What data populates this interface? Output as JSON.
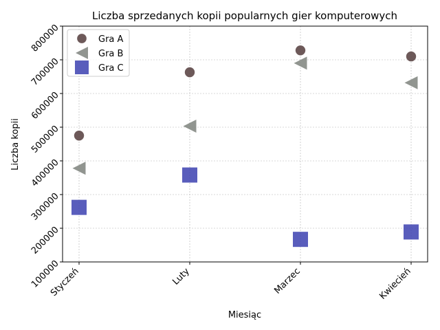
{
  "chart_data": {
    "type": "scatter",
    "title": "Liczba sprzedanych kopii popularnych gier komputerowych",
    "xlabel": "Miesiąc",
    "ylabel": "Liczba kopii",
    "categories": [
      "Styczeń",
      "Luty",
      "Marzec",
      "Kwiecień"
    ],
    "ylim": [
      100000,
      800000
    ],
    "yticks": [
      100000,
      200000,
      300000,
      400000,
      500000,
      600000,
      700000,
      800000
    ],
    "grid": true,
    "legend_position": "top-left",
    "series": [
      {
        "name": "Gra A",
        "marker": "circle",
        "color": "#5d4747",
        "values": [
          475000,
          663000,
          728000,
          710000
        ]
      },
      {
        "name": "Gra B",
        "marker": "triangle-left",
        "color": "#858a84",
        "values": [
          378000,
          503000,
          690000,
          632000
        ]
      },
      {
        "name": "Gra C",
        "marker": "square",
        "color": "#3c41b0",
        "values": [
          262000,
          358000,
          167000,
          189000
        ]
      }
    ]
  }
}
